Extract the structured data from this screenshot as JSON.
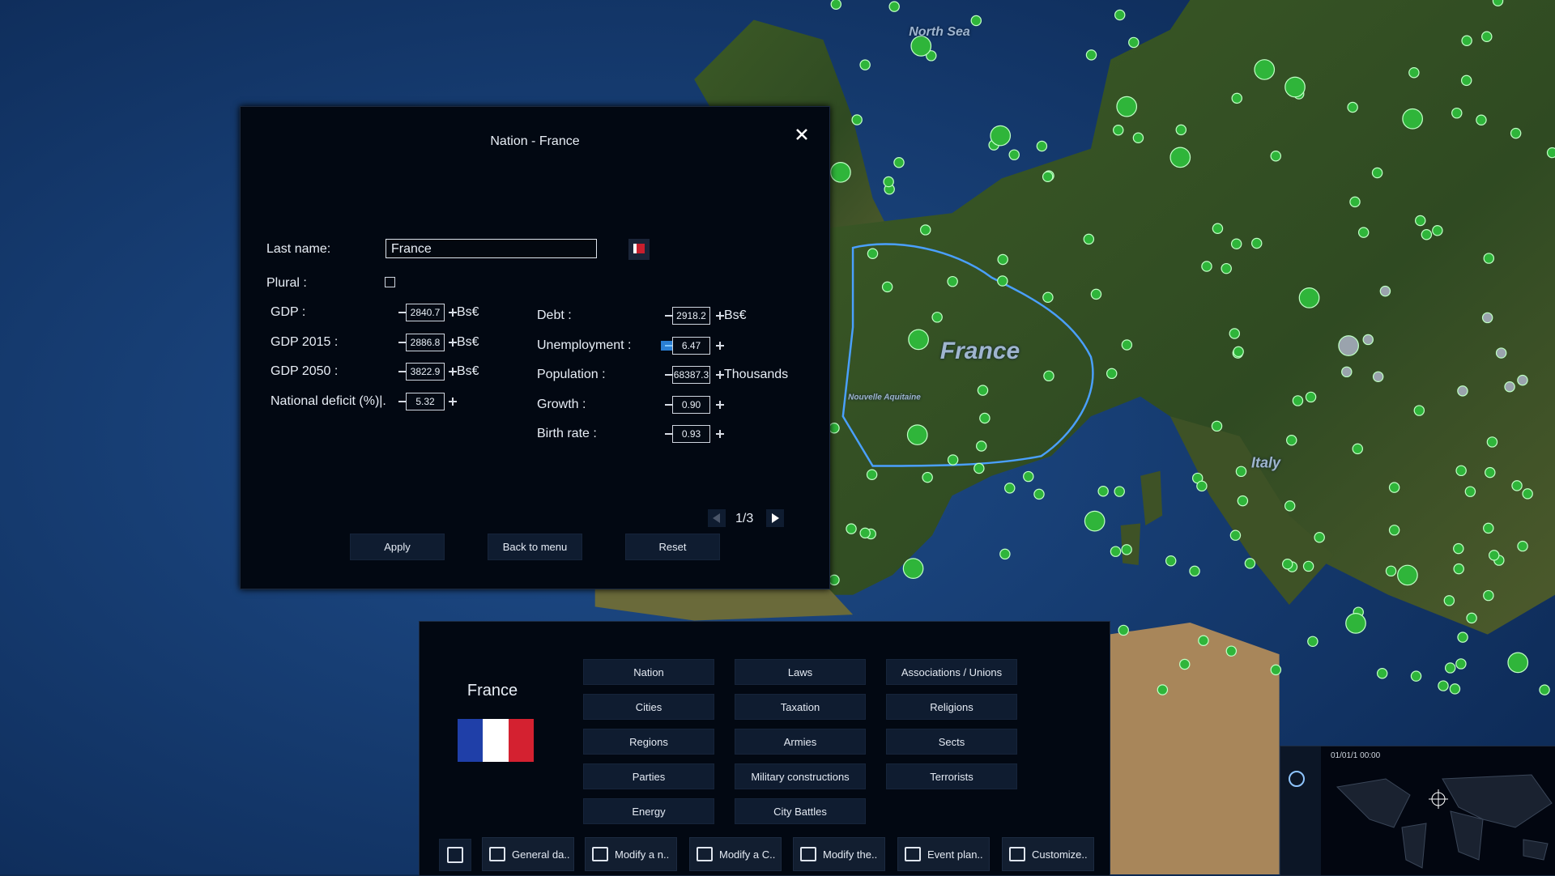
{
  "map": {
    "labels": [
      "North Sea",
      "France",
      "Nouvelle Aquitaine",
      "Italy"
    ]
  },
  "dialog": {
    "title": "Nation - France",
    "last_name_label": "Last name:",
    "last_name_value": "France",
    "plural_label": "Plural :",
    "left_fields": [
      {
        "label": "GDP :",
        "value": "2840.7",
        "unit": "Bs€"
      },
      {
        "label": "GDP 2015 :",
        "value": "2886.8",
        "unit": "Bs€"
      },
      {
        "label": "GDP 2050 :",
        "value": "3822.9",
        "unit": "Bs€"
      },
      {
        "label": "National deficit (%)|.",
        "value": "5.32"
      }
    ],
    "right_fields": [
      {
        "label": "Debt :",
        "value": "2918.2",
        "unit": "Bs€"
      },
      {
        "label": "Unemployment :",
        "value": "6.47"
      },
      {
        "label": "Population :",
        "value": "68387.3",
        "unit": "Thousands"
      },
      {
        "label": "Growth :",
        "value": "0.90"
      },
      {
        "label": "Birth rate :",
        "value": "0.93"
      }
    ],
    "page": "1/3",
    "buttons": [
      "Apply",
      "Back to menu",
      "Reset"
    ]
  },
  "panel": {
    "country": "France",
    "columns": [
      [
        "Nation",
        "Cities",
        "Regions",
        "Parties",
        "Energy"
      ],
      [
        "Laws",
        "Taxation",
        "Armies",
        "Military constructions",
        "City Battles"
      ],
      [
        "Associations / Unions",
        "Religions",
        "Sects",
        "Terrorists"
      ]
    ],
    "toolbar": [
      "General da..",
      "Modify a n..",
      "Modify a C..",
      "Modify the..",
      "Event plan..",
      "Customize.."
    ]
  },
  "minimap": {
    "date": "01/01/1 00:00"
  }
}
